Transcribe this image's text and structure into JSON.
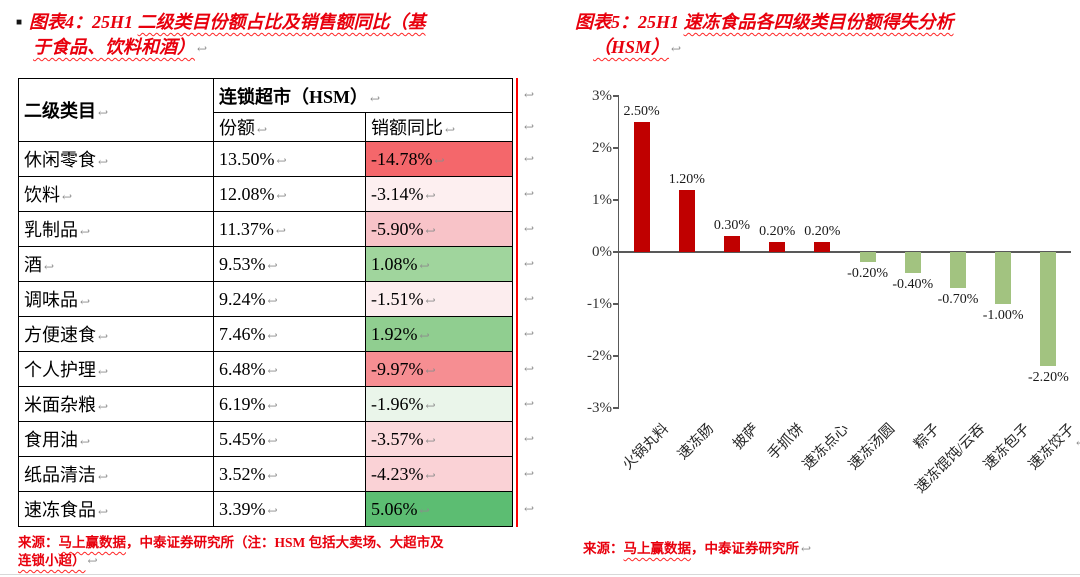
{
  "marks": {
    "eol": "↩",
    "bullet": "■"
  },
  "colors": {
    "title_red": "#e8000d",
    "revision_line": "#ff0000",
    "table_border": "#000000",
    "bar_positive": "#c00000",
    "bar_negative": "#a2c380"
  },
  "figure4": {
    "title_prefix": "图表4：25H1 ",
    "title_wavy1": "二级类目份额占比及销售额同比（基",
    "title_wavy2": "于食品、饮料和酒）",
    "source_prefix": "来源：",
    "source_wavy": "马上赢数据",
    "source_mid": "，中泰证券研究所（注：HSM 包括大卖场、大超市及",
    "source_wavy2": "连锁小超）"
  },
  "figure5": {
    "title_prefix": "图表5：25H1 ",
    "title_wavy1": "速冻食品各四级类目份额得失分析",
    "title_wavy2": "（HSM）",
    "source_prefix": "来源：",
    "source_wavy": "马上赢数据",
    "source_mid": "，中泰证券研究所"
  },
  "chart_data": [
    {
      "id": "figure4-table",
      "type": "table",
      "title": "25H1 二级类目份额占比及销售额同比（基于食品、饮料和酒）",
      "row_header": "二级类目",
      "group_header": "连锁超市（HSM）",
      "columns": [
        "份额",
        "销额同比"
      ],
      "rows": [
        [
          "休闲零食",
          "13.50%",
          "-14.78%"
        ],
        [
          "饮料",
          "12.08%",
          "-3.14%"
        ],
        [
          "乳制品",
          "11.37%",
          "-5.90%"
        ],
        [
          "酒",
          "9.53%",
          "1.08%"
        ],
        [
          "调味品",
          "9.24%",
          "-1.51%"
        ],
        [
          "方便速食",
          "7.46%",
          "1.92%"
        ],
        [
          "个人护理",
          "6.48%",
          "-9.97%"
        ],
        [
          "米面杂粮",
          "6.19%",
          "-1.96%"
        ],
        [
          "食用油",
          "5.45%",
          "-3.57%"
        ],
        [
          "纸品清洁",
          "3.52%",
          "-4.23%"
        ],
        [
          "速冻食品",
          "3.39%",
          "5.06%"
        ]
      ],
      "yoy_cell_colors": [
        "#f4676b",
        "#fdeff0",
        "#f8c3c8",
        "#a0d59d",
        "#fcedee",
        "#90ce90",
        "#f68e92",
        "#eaf5ea",
        "#fbd9dc",
        "#fad2d6",
        "#5cbd72"
      ],
      "source": "来源：马上赢数据，中泰证券研究所（注：HSM 包括大卖场、大超市及连锁小超）"
    },
    {
      "id": "figure5-bar",
      "type": "bar",
      "title": "25H1 速冻食品各四级类目份额得失分析（HSM）",
      "categories": [
        "火锅丸料",
        "速冻肠",
        "披萨",
        "手抓饼",
        "速冻点心",
        "速冻汤圆",
        "粽子",
        "速冻馄饨/云吞",
        "速冻包子",
        "速冻饺子"
      ],
      "values": [
        2.5,
        1.2,
        0.3,
        0.2,
        0.2,
        -0.2,
        -0.4,
        -0.7,
        -1.0,
        -2.2
      ],
      "labels": [
        "2.50%",
        "1.20%",
        "0.30%",
        "0.20%",
        "0.20%",
        "-0.20%",
        "-0.40%",
        "-0.70%",
        "-1.00%",
        "-2.20%"
      ],
      "ylim": [
        -3,
        3
      ],
      "yticks": [
        "3%",
        "2%",
        "1%",
        "0%",
        "-1%",
        "-2%",
        "-3%"
      ],
      "positive_color": "#c00000",
      "negative_color": "#a2c380",
      "grid": false,
      "legend": false,
      "source": "来源：马上赢数据，中泰证券研究所"
    }
  ]
}
